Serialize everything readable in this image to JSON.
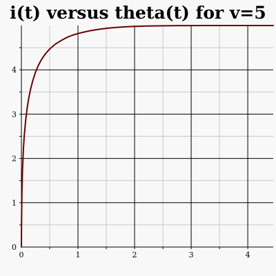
{
  "chart_data": {
    "type": "line",
    "title": "i(t) versus theta(t) for v=5",
    "xlabel": "",
    "ylabel": "",
    "xlim": [
      0,
      4.45
    ],
    "ylim": [
      0,
      5
    ],
    "x_ticks": [
      0,
      1,
      2,
      3,
      4
    ],
    "y_ticks": [
      0,
      1,
      2,
      3,
      4
    ],
    "x_minor_step": 0.5,
    "y_minor_step": 0.5,
    "grid": true,
    "legend": "none",
    "colors": {
      "background": "#f8f8f8",
      "major_grid": "#000000",
      "minor_grid": "#c8c8c8",
      "axis": "#000000",
      "series": "#6b0000"
    },
    "series": [
      {
        "x": [
          0,
          0.002,
          0.005,
          0.01,
          0.02,
          0.035,
          0.05,
          0.075,
          0.1,
          0.13,
          0.16,
          0.2,
          0.25,
          0.3,
          0.35,
          0.4,
          0.45,
          0.5,
          0.6,
          0.7,
          0.8,
          0.9,
          1.0,
          1.1,
          1.2,
          1.3,
          1.4,
          1.5,
          1.6,
          1.7,
          1.8,
          1.9,
          2.0,
          2.1,
          2.2,
          2.3,
          2.4,
          2.5,
          2.7,
          2.9,
          3.2,
          3.5,
          3.8,
          4.1,
          4.45
        ],
        "y": [
          0,
          0.4,
          0.8,
          1.25,
          1.75,
          2.2,
          2.5,
          2.85,
          3.12,
          3.36,
          3.55,
          3.75,
          3.95,
          4.1,
          4.22,
          4.32,
          4.4,
          4.47,
          4.58,
          4.66,
          4.73,
          4.78,
          4.82,
          4.85,
          4.88,
          4.9,
          4.92,
          4.935,
          4.95,
          4.96,
          4.968,
          4.975,
          4.98,
          4.985,
          4.988,
          4.991,
          4.993,
          4.995,
          4.997,
          4.998,
          4.999,
          5.0,
          5.0,
          5.0,
          5.0
        ]
      }
    ]
  }
}
